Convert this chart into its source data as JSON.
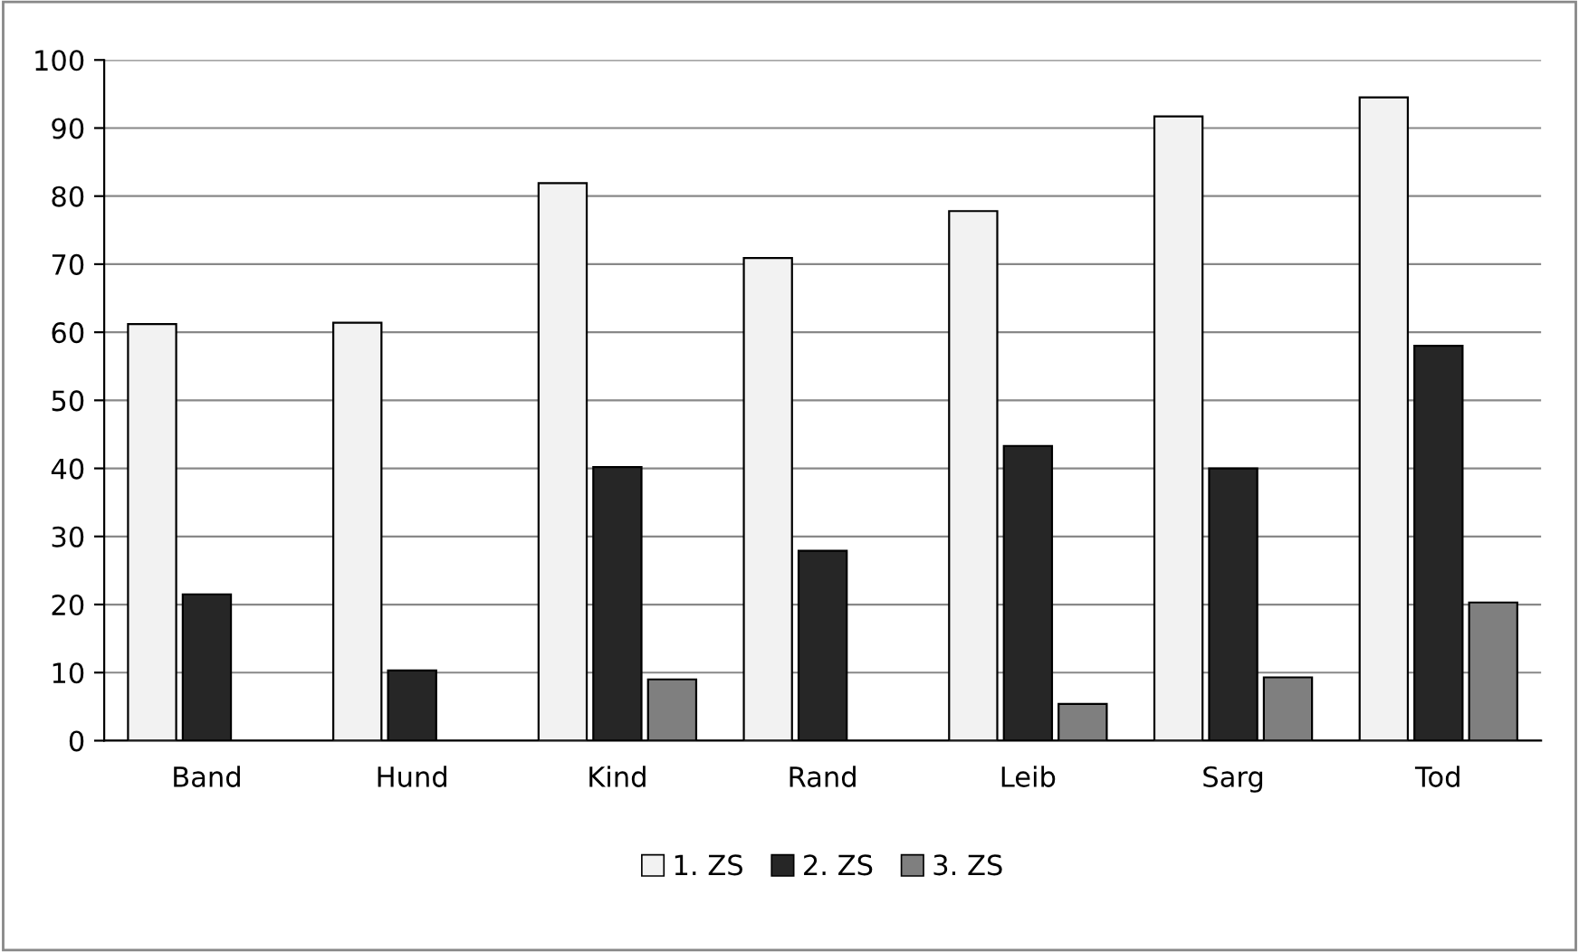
{
  "chart_data": {
    "type": "bar",
    "categories": [
      "Band",
      "Hund",
      "Kind",
      "Rand",
      "Leib",
      "Sarg",
      "Tod"
    ],
    "series": [
      {
        "name": "1. ZS",
        "color": "#f2f2f2",
        "values": [
          61.2,
          61.4,
          81.9,
          70.9,
          77.8,
          91.7,
          94.5
        ]
      },
      {
        "name": "2. ZS",
        "color": "#262626",
        "values": [
          21.5,
          10.3,
          40.2,
          27.9,
          43.3,
          40.0,
          58.0
        ]
      },
      {
        "name": "3. ZS",
        "color": "#7f7f7f",
        "values": [
          null,
          null,
          9.0,
          null,
          5.4,
          9.3,
          20.3
        ]
      }
    ],
    "ylim": [
      0,
      100
    ],
    "yticks": [
      0,
      10,
      20,
      30,
      40,
      50,
      60,
      70,
      80,
      90,
      100
    ],
    "grid": "y",
    "legend": "bottom"
  }
}
